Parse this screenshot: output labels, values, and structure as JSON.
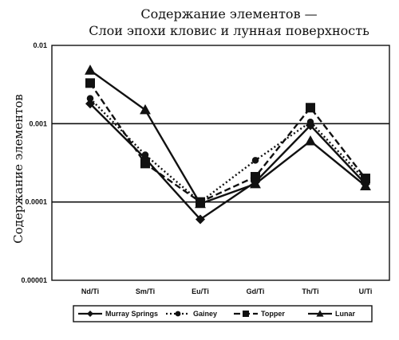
{
  "chart_data": {
    "type": "line",
    "title": "Содержание элементов —",
    "subtitle": "Слои эпохи кловис и лунная поверхность",
    "ylabel": "Содержание элементов",
    "xlabel": "",
    "yscale": "log",
    "ylim": [
      1e-05,
      0.01
    ],
    "yticks": [
      "0.01",
      "0.001",
      "0.0001",
      "0.00001"
    ],
    "categories": [
      "Nd/Ti",
      "Sm/Ti",
      "Eu/Ti",
      "Gd/Ti",
      "Th/Ti",
      "U/Ti"
    ],
    "grid": "major-y",
    "legend_position": "bottom",
    "series": [
      {
        "name": "Murray Springs",
        "marker": "diamond",
        "line_style": "solid",
        "color": "#111111",
        "values": [
          0.0018,
          0.00036,
          6e-05,
          0.00018,
          0.00095,
          0.00017
        ]
      },
      {
        "name": "Gainey",
        "marker": "circle",
        "line_style": "dotted",
        "color": "#111111",
        "values": [
          0.0021,
          0.0004,
          0.0001,
          0.00034,
          0.00105,
          0.00019
        ]
      },
      {
        "name": "Topper",
        "marker": "square",
        "line_style": "dashed",
        "color": "#111111",
        "values": [
          0.0033,
          0.00031,
          0.0001,
          0.00021,
          0.0016,
          0.0002
        ]
      },
      {
        "name": "Lunar",
        "marker": "triangle",
        "line_style": "solid",
        "color": "#111111",
        "values": [
          0.0048,
          0.0015,
          9.5e-05,
          0.00017,
          0.0006,
          0.00016
        ]
      }
    ]
  }
}
